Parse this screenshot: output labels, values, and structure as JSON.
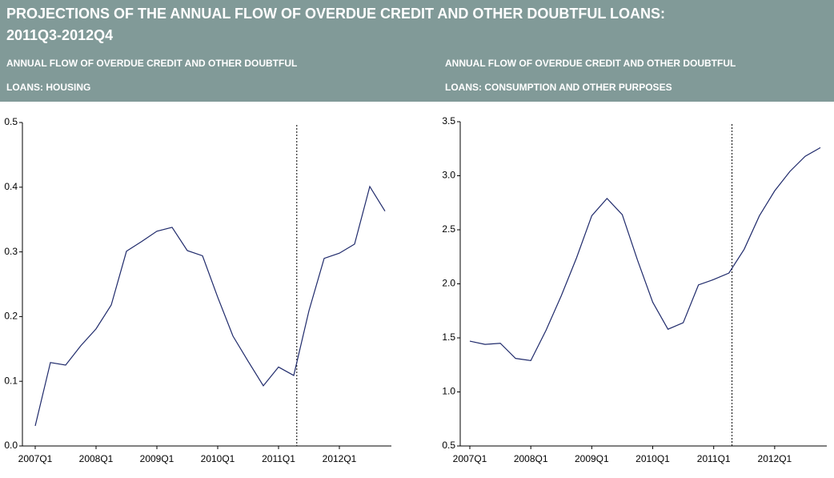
{
  "header": {
    "title_line1": "PROJECTIONS OF THE ANNUAL FLOW OF OVERDUE CREDIT AND OTHER DOUBTFUL LOANS:",
    "title_line2": "2011Q3-2012Q4"
  },
  "chart_data": [
    {
      "type": "line",
      "title_line1": "ANNUAL FLOW OF OVERDUE CREDIT AND OTHER DOUBTFUL",
      "title_line2": "LOANS: HOUSING",
      "categories": [
        "2007Q1",
        null,
        null,
        null,
        "2008Q1",
        null,
        null,
        null,
        "2009Q1",
        null,
        null,
        null,
        "2010Q1",
        null,
        null,
        null,
        "2011Q1",
        null,
        null,
        null,
        "2012Q1",
        null,
        null,
        null
      ],
      "series": [
        {
          "color": "#1f2a6b",
          "values": [
            0.031,
            0.129,
            0.125,
            0.155,
            0.181,
            0.218,
            0.301,
            0.316,
            0.332,
            0.338,
            0.302,
            0.294,
            0.23,
            0.17,
            0.131,
            0.093,
            0.122,
            0.109,
            0.209,
            0.29,
            0.298,
            0.312,
            0.401,
            0.363
          ]
        }
      ],
      "ylim": [
        0,
        0.5
      ],
      "yticks": [
        {
          "value": 0,
          "label": "0.0"
        },
        0.1,
        0.2,
        0.3,
        0.4,
        0.5
      ]
    },
    {
      "type": "line",
      "title_line1": "ANNUAL FLOW OF OVERDUE CREDIT AND OTHER DOUBTFUL",
      "title_line2": "LOANS: CONSUMPTION AND OTHER PURPOSES",
      "categories": [
        "2007Q1",
        null,
        null,
        null,
        "2008Q1",
        null,
        null,
        null,
        "2009Q1",
        null,
        null,
        null,
        "2010Q1",
        null,
        null,
        null,
        "2011Q1",
        null,
        null,
        null,
        "2012Q1",
        null,
        null,
        null
      ],
      "series": [
        {
          "color": "#1f2a6b",
          "values": [
            1.47,
            1.44,
            1.45,
            1.31,
            1.29,
            1.57,
            1.89,
            2.24,
            2.63,
            2.79,
            2.64,
            2.22,
            1.83,
            1.58,
            1.64,
            1.99,
            2.04,
            2.1,
            2.32,
            2.63,
            2.86,
            3.04,
            3.18,
            3.26
          ]
        }
      ],
      "ylim": [
        0.5,
        3.5
      ],
      "yticks": [
        0.5,
        {
          "value": 1,
          "label": "1.0"
        },
        1.5,
        {
          "value": 2,
          "label": "2.0"
        },
        2.5,
        {
          "value": 3,
          "label": "3.0"
        },
        3.5
      ]
    }
  ]
}
